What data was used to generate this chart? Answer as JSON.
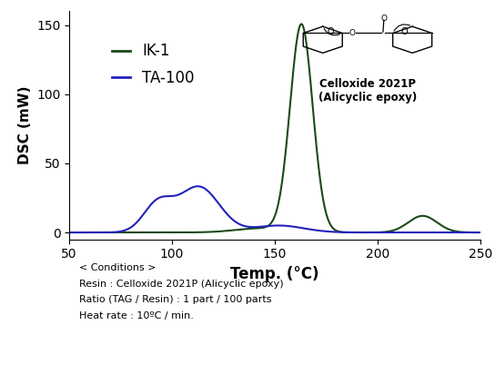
{
  "title": "",
  "xlabel": "Temp. (°C)",
  "ylabel": "DSC (mW)",
  "xlim": [
    50,
    250
  ],
  "ylim": [
    -5,
    160
  ],
  "yticks": [
    0,
    50,
    100,
    150
  ],
  "xticks": [
    50,
    100,
    150,
    200,
    250
  ],
  "legend_IK1": "IK-1",
  "legend_TA100": "TA-100",
  "color_IK1": "#1a4a1a",
  "color_TA100": "#2222bb",
  "annotation_line1": "Celloxide 2021P",
  "annotation_line2": "(Alicyclic epoxy)",
  "conditions_line0": "< Conditions >",
  "conditions_line1": "Resin : Celloxide 2021P (Alicyclic epoxy)",
  "conditions_line2": "Ratio (TAG / Resin) : 1 part / 100 parts",
  "conditions_line3": "Heat rate : 10ºC / min."
}
